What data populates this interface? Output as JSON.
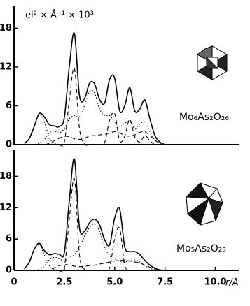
{
  "chart_data": [
    {
      "type": "line",
      "y_label": "el² × Å⁻¹ × 10³",
      "label": "Mo₆As₂O₂₆",
      "xlim": [
        0,
        11.2
      ],
      "ylim": [
        0,
        21.5
      ],
      "yticks": [
        0,
        6,
        12,
        18
      ],
      "x": [
        0.5,
        0.75,
        1.0,
        1.25,
        1.5,
        1.75,
        2.0,
        2.25,
        2.5,
        2.75,
        3.0,
        3.25,
        3.5,
        3.75,
        4.0,
        4.25,
        4.5,
        4.75,
        5.0,
        5.25,
        5.5,
        5.75,
        6.0,
        6.25,
        6.5,
        6.75,
        7.0,
        7.25,
        7.5
      ],
      "series": [
        {
          "style": "solid",
          "color": "#000000",
          "values": [
            0.2,
            0.9,
            2.8,
            4.8,
            4.3,
            3.1,
            2.9,
            2.8,
            4.2,
            12.2,
            17.2,
            7.6,
            7.1,
            9.5,
            9.4,
            7.0,
            6.4,
            10.1,
            10.3,
            5.2,
            6.0,
            8.8,
            5.2,
            5.5,
            6.9,
            4.0,
            1.4,
            0.4,
            0
          ]
        },
        {
          "style": "dotted",
          "color": "#000000",
          "values": [
            0.2,
            0.9,
            2.8,
            4.6,
            3.5,
            1.1,
            0.2,
            0,
            0,
            0,
            0,
            0,
            0,
            0,
            0,
            0,
            0,
            0,
            0,
            0,
            0,
            0,
            0,
            0,
            0,
            0,
            0,
            0,
            0
          ]
        },
        {
          "style": "dashed",
          "color": "#000000",
          "values": [
            0,
            0,
            0,
            0,
            0,
            0,
            0,
            0,
            0.4,
            7,
            11.8,
            2.5,
            0.1,
            0,
            0,
            0,
            0.3,
            3.8,
            4.8,
            0.6,
            1.3,
            3.9,
            1.2,
            0.4,
            1.4,
            0.6,
            0,
            0,
            0
          ]
        },
        {
          "style": "dotted",
          "color": "#000000",
          "values": [
            0,
            0,
            0,
            0.2,
            0.8,
            1.8,
            2.1,
            1.8,
            2.5,
            4,
            4.5,
            4.3,
            6,
            8.2,
            8.0,
            5.5,
            4.5,
            4.5,
            3.5,
            2.8,
            3.3,
            3.6,
            2.5,
            3.2,
            3.5,
            2.0,
            0.7,
            0.2,
            0
          ]
        },
        {
          "style": "dashed",
          "color": "#000000",
          "values": [
            0,
            0,
            0,
            0,
            0,
            0.2,
            0.6,
            1.0,
            1.3,
            1.2,
            0.9,
            0.8,
            1.0,
            1.3,
            1.4,
            1.5,
            1.6,
            1.8,
            2.0,
            1.8,
            1.4,
            1.3,
            1.5,
            1.9,
            2.0,
            1.4,
            0.7,
            0.2,
            0
          ]
        }
      ]
    },
    {
      "type": "line",
      "label": "Mo₅As₂O₂₃",
      "x_label": "r/Å",
      "xlim": [
        0,
        11.2
      ],
      "ylim": [
        0,
        23
      ],
      "yticks": [
        0,
        6,
        12,
        18
      ],
      "xticks": [
        0,
        2.5,
        {
          "value": 5,
          "label": "5.0"
        },
        7.5,
        {
          "value": 10,
          "label": "10.0"
        }
      ],
      "x": [
        0.5,
        0.75,
        1.0,
        1.25,
        1.5,
        1.75,
        2.0,
        2.25,
        2.5,
        2.75,
        3.0,
        3.25,
        3.5,
        3.75,
        4.0,
        4.25,
        4.5,
        4.75,
        5.0,
        5.25,
        5.5,
        5.75,
        6.0,
        6.25,
        6.5,
        6.75,
        7.0,
        7.25,
        7.5
      ],
      "series": [
        {
          "style": "solid",
          "color": "#000000",
          "values": [
            0.3,
            1.5,
            4.0,
            5.2,
            3.8,
            3.0,
            3.2,
            3.1,
            3.4,
            13.5,
            21.3,
            8.2,
            7.5,
            9.1,
            9.8,
            8.7,
            5.9,
            4.9,
            10.0,
            11.7,
            4.5,
            3.6,
            3.6,
            3.0,
            1.9,
            1.0,
            0.4,
            0.1,
            0
          ]
        },
        {
          "style": "dotted",
          "color": "#000000",
          "values": [
            0.3,
            1.5,
            4.0,
            5.0,
            3.0,
            0.9,
            0.2,
            0,
            0,
            0,
            0,
            0,
            0,
            0,
            0,
            0,
            0,
            0,
            0,
            0,
            0,
            0,
            0,
            0,
            0,
            0,
            0,
            0,
            0
          ]
        },
        {
          "style": "dashed",
          "color": "#000000",
          "values": [
            0,
            0,
            0,
            0,
            0,
            0,
            0,
            0,
            0.5,
            10,
            17.5,
            3,
            0.2,
            0,
            0,
            0,
            0,
            0.5,
            6,
            8,
            1,
            0,
            0,
            0,
            0,
            0,
            0,
            0,
            0
          ]
        },
        {
          "style": "dotted",
          "color": "#000000",
          "values": [
            0,
            0,
            0,
            0.2,
            0.8,
            2.0,
            2.5,
            2.2,
            1.8,
            2.5,
            3.0,
            4.5,
            6.5,
            8.2,
            8.8,
            7.5,
            4.5,
            2.8,
            2.2,
            1.8,
            1.6,
            1.8,
            2.0,
            1.6,
            0.9,
            0.4,
            0.1,
            0,
            0
          ]
        },
        {
          "style": "dashed",
          "color": "#000000",
          "values": [
            0,
            0,
            0,
            0,
            0,
            0.1,
            0.5,
            0.9,
            1.1,
            1.0,
            0.8,
            0.7,
            0.8,
            0.9,
            1.0,
            1.2,
            1.4,
            1.6,
            1.8,
            1.9,
            1.9,
            1.8,
            1.6,
            1.4,
            1.0,
            0.6,
            0.3,
            0.1,
            0
          ]
        }
      ]
    }
  ]
}
